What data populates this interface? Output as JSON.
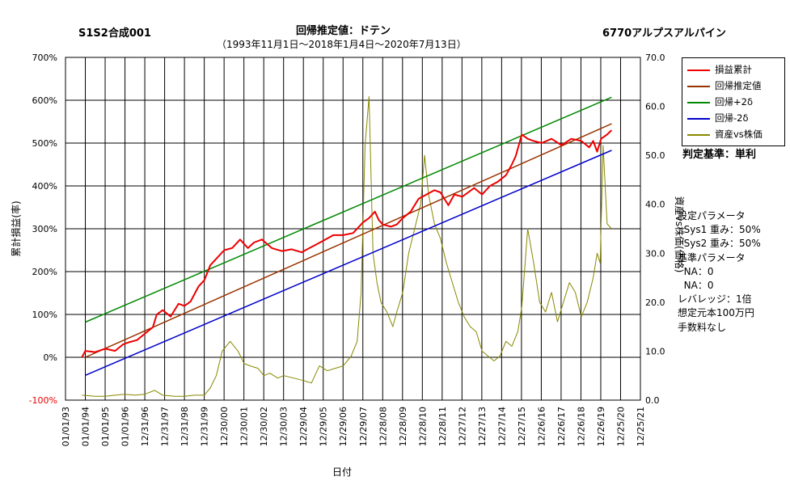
{
  "header": {
    "left": "S1S2合成001",
    "center": "回帰推定値：ドテン",
    "subtitle": "（1993年11月1日～2018年1月4日～2020年7月13日）",
    "right": "6770アルプスアルパイン"
  },
  "criteria": "判定基準：単利",
  "params": [
    "設定パラメータ",
    "  Sys1 重み：50%",
    "  Sys2 重み：50%",
    "基準パラメータ",
    "  NA：0",
    "  NA：0",
    "レバレッジ：1倍",
    "想定元本100万円",
    "手数料なし"
  ],
  "colors": {
    "pl": "#ee0000",
    "reg": "#993300",
    "up": "#008800",
    "down": "#0000cc",
    "price": "#888800"
  },
  "chart_data": {
    "type": "line",
    "xlabel": "日付",
    "ylabel_left": "累計損益(率)",
    "ylabel_right": "資産vs株価(価格)",
    "ylim_left": [
      -100,
      700
    ],
    "ylim_right": [
      0,
      70
    ],
    "y_ticks_left": [
      "-100%",
      "0%",
      "100%",
      "200%",
      "300%",
      "400%",
      "500%",
      "600%",
      "700%"
    ],
    "y_ticks_right": [
      "0.0",
      "10.0",
      "20.0",
      "30.0",
      "40.0",
      "50.0",
      "60.0",
      "70.0"
    ],
    "x_ticks": [
      "01/01/93",
      "01/01/94",
      "01/01/95",
      "01/01/96",
      "12/31/96",
      "12/31/97",
      "12/31/98",
      "12/31/99",
      "12/30/00",
      "12/30/01",
      "12/30/02",
      "12/30/03",
      "12/29/04",
      "12/29/05",
      "12/29/06",
      "12/29/07",
      "12/28/08",
      "12/28/09",
      "12/28/10",
      "12/28/11",
      "12/27/12",
      "12/27/13",
      "12/27/14",
      "12/27/15",
      "12/26/16",
      "12/26/17",
      "12/26/18",
      "12/26/19",
      "12/25/20",
      "12/25/21"
    ],
    "legend": [
      "損益累計",
      "回帰推定値",
      "回帰+2δ",
      "回帰-2δ",
      "資産vs株価"
    ],
    "legend_position": "top-right",
    "grid": true,
    "series": [
      {
        "name": "損益累計",
        "axis": "left",
        "x": [
          1993.83,
          1994.0,
          1994.5,
          1995.0,
          1995.5,
          1995.9,
          1996.2,
          1996.6,
          1997.0,
          1997.4,
          1997.6,
          1997.9,
          1998.3,
          1998.7,
          1999.0,
          1999.3,
          1999.7,
          2000.0,
          2000.3,
          2000.6,
          2001.0,
          2001.4,
          2001.8,
          2002.2,
          2002.5,
          2002.9,
          2003.4,
          2003.9,
          2004.4,
          2004.9,
          2005.5,
          2006.0,
          2006.5,
          2007.0,
          2007.5,
          2008.0,
          2008.3,
          2008.6,
          2008.8,
          2009.0,
          2009.4,
          2009.7,
          2010.0,
          2010.4,
          2010.8,
          2011.2,
          2011.6,
          2011.9,
          2012.3,
          2012.6,
          2013.0,
          2013.3,
          2013.6,
          2014.0,
          2014.4,
          2014.8,
          2015.2,
          2015.5,
          2015.7,
          2016.0,
          2016.3,
          2016.6,
          2017.0,
          2017.5,
          2018.0,
          2018.5,
          2019.0,
          2019.4,
          2019.6,
          2019.8,
          2020.0,
          2020.3,
          2020.53
        ],
        "y": [
          0,
          15,
          12,
          20,
          15,
          30,
          35,
          40,
          55,
          70,
          100,
          110,
          95,
          125,
          120,
          130,
          165,
          180,
          215,
          230,
          250,
          255,
          275,
          255,
          268,
          275,
          255,
          248,
          252,
          245,
          260,
          272,
          285,
          285,
          290,
          315,
          325,
          340,
          320,
          310,
          305,
          310,
          325,
          340,
          370,
          380,
          390,
          385,
          355,
          380,
          375,
          385,
          395,
          380,
          400,
          410,
          425,
          450,
          470,
          520,
          510,
          505,
          500,
          510,
          495,
          510,
          505,
          490,
          505,
          480,
          510,
          520,
          530
        ]
      },
      {
        "name": "回帰推定値",
        "axis": "left",
        "x": [
          1994.0,
          2020.53
        ],
        "y": [
          0,
          545
        ]
      },
      {
        "name": "回帰+2δ",
        "axis": "left",
        "x": [
          1994.0,
          2020.53
        ],
        "y": [
          82,
          607
        ]
      },
      {
        "name": "回帰-2δ",
        "axis": "left",
        "x": [
          1994.0,
          2020.53
        ],
        "y": [
          -42,
          483
        ]
      },
      {
        "name": "資産vs株価",
        "axis": "right",
        "x": [
          1993.83,
          1994.5,
          1995.0,
          1995.5,
          1996.0,
          1996.5,
          1997.0,
          1997.5,
          1997.9,
          1998.5,
          1999.0,
          1999.5,
          2000.0,
          2000.3,
          2000.6,
          2000.9,
          2001.3,
          2001.7,
          2002.0,
          2002.3,
          2002.7,
          2003.0,
          2003.3,
          2003.7,
          2004.0,
          2004.5,
          2005.0,
          2005.4,
          2005.8,
          2006.2,
          2006.6,
          2007.0,
          2007.4,
          2007.7,
          2007.9,
          2008.1,
          2008.3,
          2008.5,
          2008.7,
          2008.9,
          2009.2,
          2009.5,
          2009.7,
          2010.0,
          2010.3,
          2010.6,
          2010.9,
          2011.1,
          2011.3,
          2011.6,
          2011.9,
          2012.2,
          2012.5,
          2012.8,
          2013.1,
          2013.4,
          2013.7,
          2014.0,
          2014.3,
          2014.6,
          2014.9,
          2015.2,
          2015.5,
          2015.8,
          2016.0,
          2016.3,
          2016.6,
          2016.9,
          2017.2,
          2017.5,
          2017.8,
          2018.1,
          2018.4,
          2018.7,
          2019.0,
          2019.3,
          2019.6,
          2019.8,
          2019.95,
          2020.1,
          2020.3,
          2020.53
        ],
        "y": [
          1.0,
          0.8,
          0.8,
          1.0,
          1.2,
          1.0,
          1.2,
          2.0,
          1.0,
          0.8,
          0.8,
          1.0,
          1.0,
          2.5,
          5.0,
          10.0,
          12.0,
          10.0,
          7.5,
          7.0,
          6.5,
          5.0,
          5.5,
          4.5,
          5.0,
          4.5,
          4.0,
          3.5,
          7.0,
          6.0,
          6.5,
          7.0,
          9.0,
          12.0,
          22.0,
          52.0,
          62.0,
          30.0,
          24.0,
          20.0,
          18.0,
          15.0,
          18.0,
          22.0,
          30.0,
          35.0,
          40.0,
          50.0,
          42.0,
          36.0,
          33.0,
          28.0,
          24.0,
          20.0,
          17.0,
          15.0,
          14.0,
          10.0,
          9.0,
          8.0,
          9.0,
          12.0,
          11.0,
          14.0,
          19.0,
          35.0,
          28.0,
          20.0,
          18.0,
          22.0,
          16.0,
          20.0,
          24.0,
          22.0,
          17.0,
          20.0,
          25.0,
          30.0,
          28.0,
          52.0,
          36.0,
          35.0
        ]
      }
    ]
  }
}
